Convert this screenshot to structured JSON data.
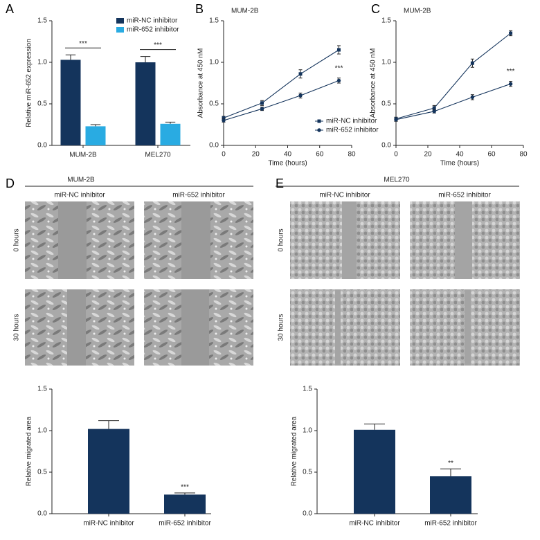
{
  "panels": [
    "A",
    "B",
    "C",
    "D",
    "E"
  ],
  "chart_data": [
    {
      "type": "bar",
      "ylabel": "Relative miR-652 expression",
      "categories": [
        "MUM-2B",
        "MEL270"
      ],
      "series": [
        {
          "name": "miR-NC inhibitor",
          "color": "#14345c",
          "values": [
            1.03,
            1.0
          ],
          "errors": [
            0.06,
            0.07
          ]
        },
        {
          "name": "miR-652 inhibitor",
          "color": "#29abe2",
          "values": [
            0.23,
            0.26
          ],
          "errors": [
            0.02,
            0.02
          ]
        }
      ],
      "ylim": [
        0,
        1.5
      ],
      "yticks": [
        {
          "value": 0,
          "label": "0.0"
        },
        0.5,
        {
          "value": 1,
          "label": "1.0"
        },
        1.5
      ],
      "annotations": [
        "***",
        "***"
      ],
      "legend": "top-right"
    },
    {
      "type": "line",
      "title": "MUM-2B",
      "xlabel": "Time (hours)",
      "ylabel": "Absorbance at 450 nM",
      "x": [
        0,
        24,
        48,
        72
      ],
      "series": [
        {
          "name": "miR-NC inhibitor",
          "color": "#14345c",
          "marker": "square",
          "values": [
            0.33,
            0.51,
            0.86,
            1.15
          ],
          "errors": [
            0.02,
            0.03,
            0.05,
            0.05
          ]
        },
        {
          "name": "miR-652 inhibitor",
          "color": "#14345c",
          "marker": "circle",
          "values": [
            0.3,
            0.44,
            0.6,
            0.78
          ],
          "errors": [
            0.02,
            0.02,
            0.03,
            0.03
          ]
        }
      ],
      "xlim": [
        0,
        80
      ],
      "xticks": [
        0,
        20,
        40,
        60,
        80
      ],
      "ylim": [
        0,
        1.5
      ],
      "yticks": [
        {
          "value": 0,
          "label": "0.0"
        },
        0.5,
        {
          "value": 1,
          "label": "1.0"
        },
        1.5
      ],
      "annotations": [
        "***"
      ],
      "legend": "lower-right"
    },
    {
      "type": "line",
      "title": "MUM-2B",
      "xlabel": "Time (hours)",
      "ylabel": "Absorbance at 450 nM",
      "x": [
        0,
        24,
        48,
        72
      ],
      "series": [
        {
          "color": "#14345c",
          "marker": "square",
          "values": [
            0.32,
            0.45,
            0.99,
            1.35
          ],
          "errors": [
            0.02,
            0.03,
            0.05,
            0.03
          ]
        },
        {
          "color": "#14345c",
          "marker": "circle",
          "values": [
            0.31,
            0.41,
            0.58,
            0.74
          ],
          "errors": [
            0.02,
            0.02,
            0.03,
            0.03
          ]
        }
      ],
      "xlim": [
        0,
        80
      ],
      "xticks": [
        0,
        20,
        40,
        60,
        80
      ],
      "ylim": [
        0,
        1.5
      ],
      "yticks": [
        {
          "value": 0,
          "label": "0.0"
        },
        0.5,
        {
          "value": 1,
          "label": "1.0"
        },
        1.5
      ],
      "annotations": [
        "***"
      ]
    },
    {
      "type": "bar",
      "ylabel": "Relative migrated area",
      "categories": [
        "miR-NC inhibitor",
        "miR-652 inhibitor"
      ],
      "values": [
        1.02,
        0.23
      ],
      "errors": [
        0.1,
        0.02
      ],
      "color": "#14345c",
      "ylim": [
        0,
        1.5
      ],
      "yticks": [
        {
          "value": 0,
          "label": "0.0"
        },
        0.5,
        {
          "value": 1,
          "label": "1.0"
        },
        1.5
      ],
      "annotations": [
        "***"
      ]
    },
    {
      "type": "bar",
      "ylabel": "Relative migrated area",
      "categories": [
        "miR-NC inhibitor",
        "miR-652 inhibitor"
      ],
      "values": [
        1.01,
        0.45
      ],
      "errors": [
        0.07,
        0.09
      ],
      "color": "#14345c",
      "ylim": [
        0,
        1.5
      ],
      "yticks": [
        {
          "value": 0,
          "label": "0.0"
        },
        0.5,
        {
          "value": 1,
          "label": "1.0"
        },
        1.5
      ],
      "annotations": [
        "**"
      ]
    }
  ],
  "micrographs": [
    {
      "title": "MUM-2B",
      "columns": [
        "miR-NC inhibitor",
        "miR-652 inhibitor"
      ],
      "rows": [
        "0 hours",
        "30 hours"
      ]
    },
    {
      "title": "MEL270",
      "columns": [
        "miR-NC inhibitor",
        "miR-652 inhibitor"
      ],
      "rows": [
        "0 hours",
        "30 hours"
      ]
    }
  ]
}
